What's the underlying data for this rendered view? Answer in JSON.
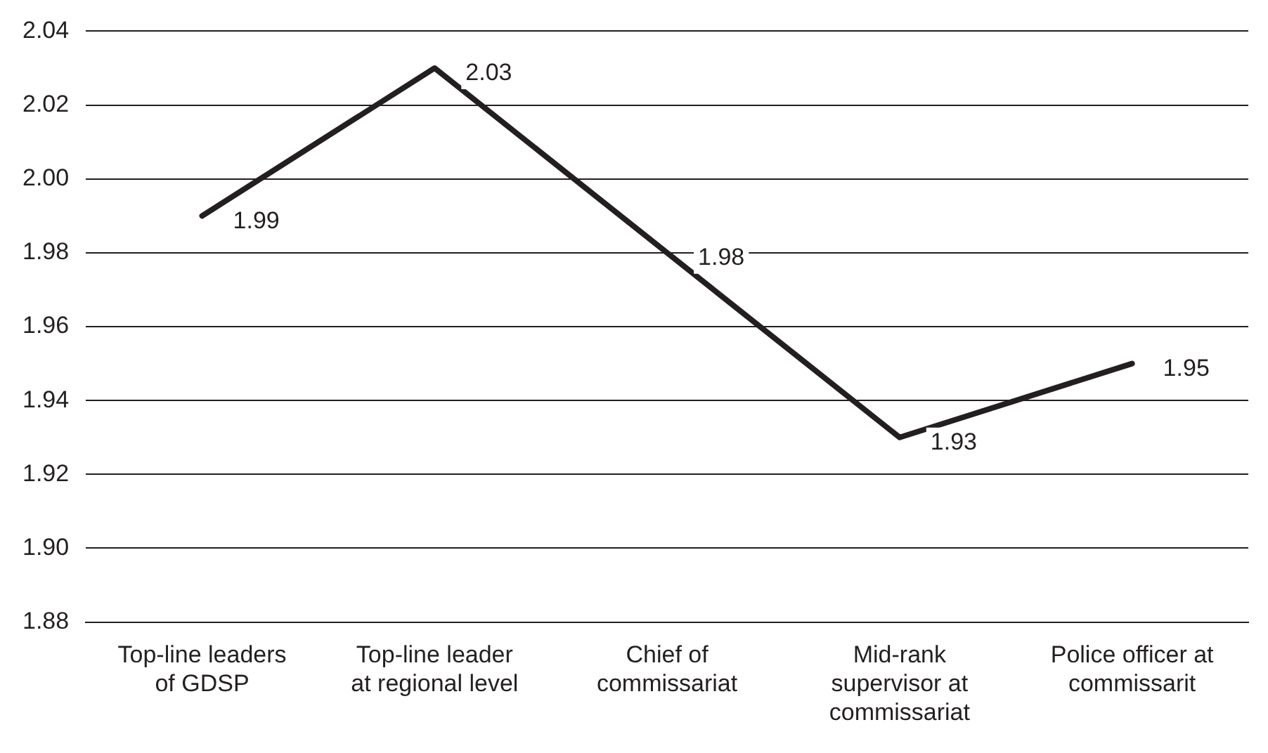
{
  "chart_data": {
    "type": "line",
    "categories": [
      "Top-line leaders of GDSP",
      "Top-line leader at regional level",
      "Chief of commissariat",
      "Mid-rank supervisor at commissariat",
      "Police officer at commissarit"
    ],
    "series": [
      {
        "color": "#231f20",
        "values": [
          1.99,
          2.03,
          1.98,
          1.93,
          1.95
        ]
      }
    ],
    "ylim": [
      1.88,
      2.04
    ],
    "yticks": [
      1.88,
      {
        "value": 1.9,
        "label": "1.90"
      },
      1.92,
      1.94,
      1.96,
      1.98,
      {
        "value": 2.0,
        "label": "2.00"
      },
      2.02,
      2.04
    ],
    "grid": "y",
    "legend": false,
    "marker": "none",
    "line_style": "solid",
    "data_labels": true
  }
}
